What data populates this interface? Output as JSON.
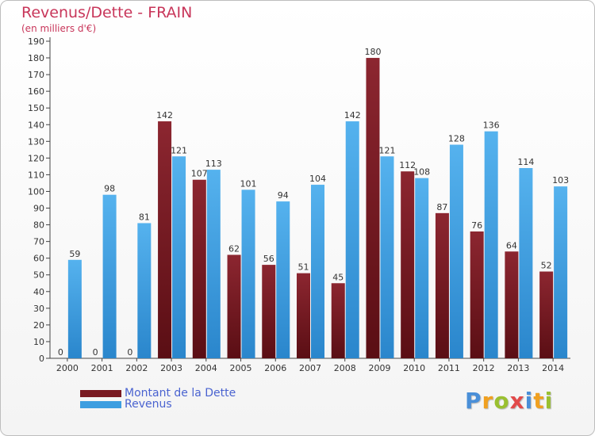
{
  "title": "Revenus/Dette - FRAIN",
  "subtitle": "(en milliers d'€)",
  "logo": {
    "text": "Proxiti",
    "letters": [
      {
        "ch": "P",
        "color": "#4a8fd8"
      },
      {
        "ch": "r",
        "color": "#f0a020"
      },
      {
        "ch": "o",
        "color": "#9ac030"
      },
      {
        "ch": "x",
        "color": "#e24a4a"
      },
      {
        "ch": "i",
        "color": "#4a8fd8"
      },
      {
        "ch": "t",
        "color": "#f0a020"
      },
      {
        "ch": "i",
        "color": "#9ac030"
      }
    ]
  },
  "chart_data": {
    "type": "bar",
    "title": "Revenus/Dette - FRAIN",
    "subtitle": "(en milliers d'€)",
    "categories": [
      "2000",
      "2001",
      "2002",
      "2003",
      "2004",
      "2005",
      "2006",
      "2007",
      "2008",
      "2009",
      "2010",
      "2011",
      "2012",
      "2013",
      "2014"
    ],
    "series": [
      {
        "name": "Montant de la Dette",
        "color": "#7a1a22",
        "values": [
          0,
          0,
          0,
          142,
          107,
          62,
          56,
          51,
          45,
          180,
          112,
          87,
          76,
          64,
          52
        ]
      },
      {
        "name": "Revenus",
        "color": "#3d9ee0",
        "values": [
          59,
          98,
          81,
          121,
          113,
          101,
          94,
          104,
          142,
          121,
          108,
          128,
          136,
          114,
          103
        ]
      }
    ],
    "ylim": [
      0,
      190
    ],
    "yticks": [
      0,
      10,
      20,
      30,
      40,
      50,
      60,
      70,
      80,
      90,
      100,
      110,
      120,
      130,
      140,
      150,
      160,
      170,
      180,
      190
    ],
    "grid": false,
    "legend": "bottom-left"
  }
}
